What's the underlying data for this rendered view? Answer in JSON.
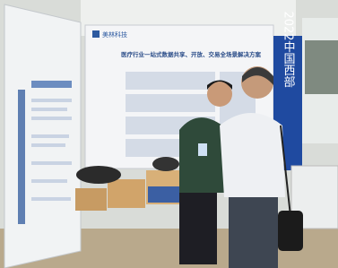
{
  "banner": {
    "text": "2022中国西部"
  },
  "poster": {
    "logo": "美林科技",
    "title": "医疗行业一站式数据共享、开放、交易全场景解决方案"
  }
}
